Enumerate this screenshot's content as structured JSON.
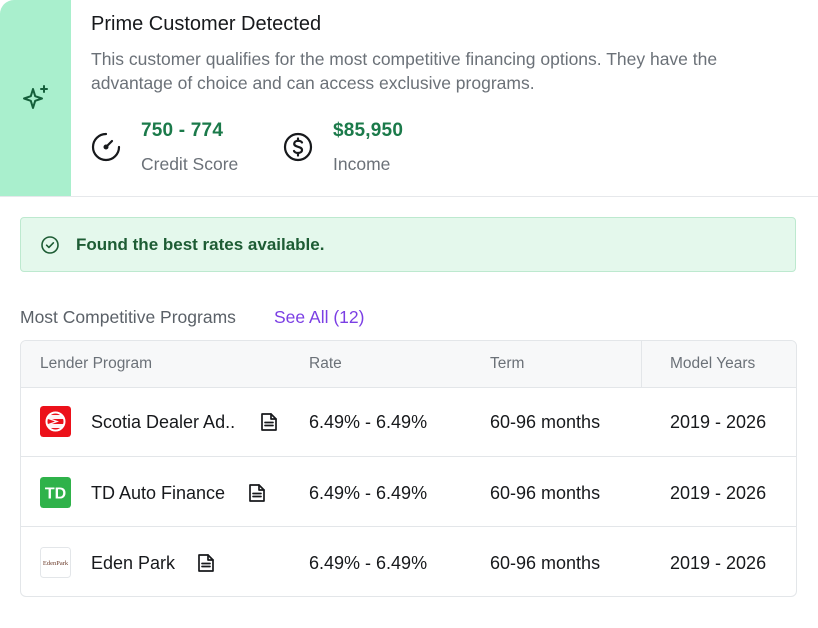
{
  "prime": {
    "title": "Prime Customer Detected",
    "description": "This customer qualifies for the most competitive financing options. They have the advantage of choice and can access exclusive programs.",
    "credit_score": {
      "value": "750 - 774",
      "label": "Credit Score"
    },
    "income": {
      "value": "$85,950",
      "label": "Income"
    }
  },
  "alert": {
    "text": "Found the best rates available."
  },
  "programs": {
    "title": "Most Competitive Programs",
    "see_all": "See All (12)",
    "columns": [
      "Lender Program",
      "Rate",
      "Term",
      "Model Years"
    ],
    "rows": [
      {
        "lender": "Scotia Dealer Ad..",
        "rate": "6.49% - 6.49%",
        "term": "60-96 months",
        "years": "2019 - 2026",
        "logo": "scotia-logo"
      },
      {
        "lender": "TD Auto Finance",
        "rate": "6.49% - 6.49%",
        "term": "60-96 months",
        "years": "2019 - 2026",
        "logo": "td-logo",
        "logo_text": "TD"
      },
      {
        "lender": "Eden Park",
        "rate": "6.49% - 6.49%",
        "term": "60-96 months",
        "years": "2019 - 2026",
        "logo": "eden-park-logo",
        "logo_text": "EdenPark"
      }
    ]
  },
  "colors": {
    "accent_green": "#1b7a4a",
    "side_green": "#a9efcd",
    "link_purple": "#7b3fe4",
    "alert_bg": "#e4f8ec"
  }
}
